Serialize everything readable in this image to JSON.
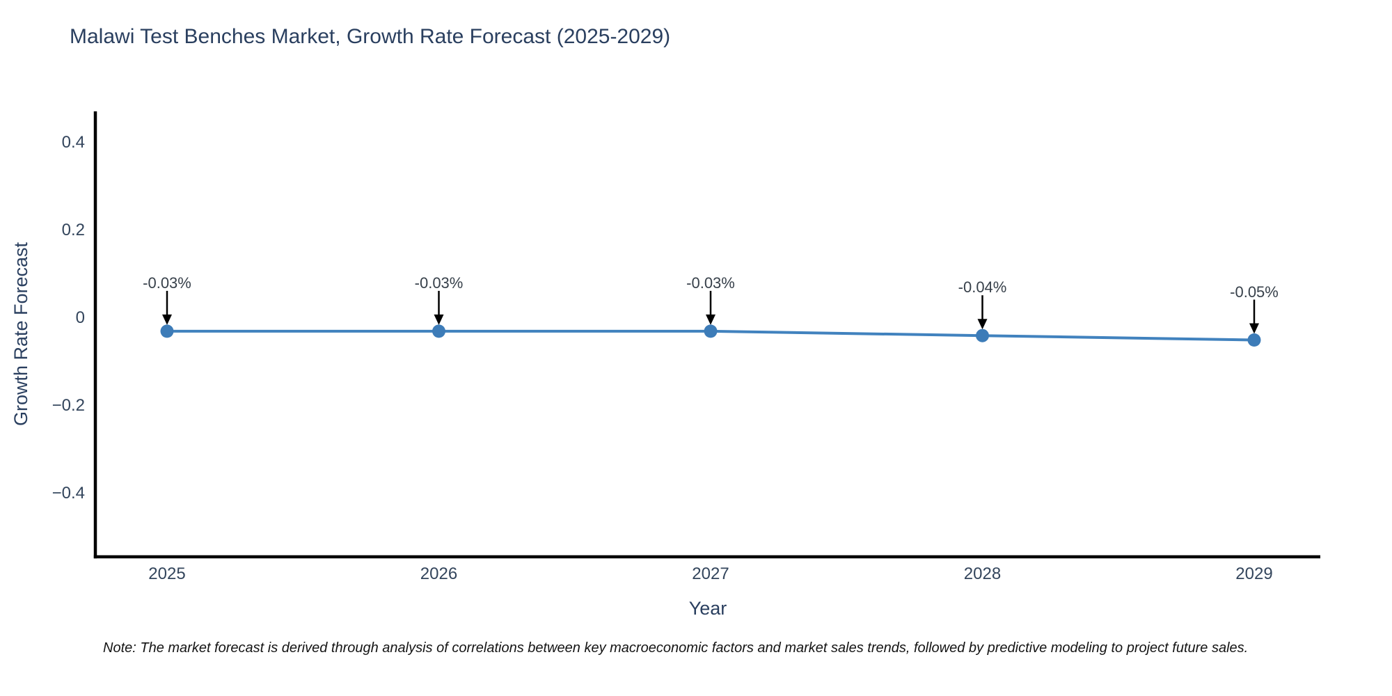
{
  "chart": {
    "title": "Malawi Test Benches Market, Growth Rate Forecast (2025-2029)",
    "xlabel": "Year",
    "ylabel": "Growth Rate Forecast",
    "note": "Note: The market forecast is derived through analysis of correlations between key macroeconomic factors and market sales trends, followed by predictive modeling to project future sales."
  },
  "chart_data": {
    "type": "line",
    "title": "Malawi Test Benches Market, Growth Rate Forecast (2025-2029)",
    "xlabel": "Year",
    "ylabel": "Growth Rate Forecast",
    "categories": [
      "2025",
      "2026",
      "2027",
      "2028",
      "2029"
    ],
    "series": [
      {
        "name": "Growth Rate Forecast",
        "values": [
          -0.03,
          -0.03,
          -0.03,
          -0.04,
          -0.05
        ]
      }
    ],
    "point_labels": [
      "-0.03%",
      "-0.03%",
      "-0.03%",
      "-0.04%",
      "-0.05%"
    ],
    "ylim": [
      -0.544,
      0.471
    ],
    "yticks": [
      0.4,
      0.2,
      0,
      -0.2,
      -0.4
    ],
    "ytick_labels": [
      "0.4",
      "0.2",
      "0",
      "−0.2",
      "−0.4"
    ],
    "grid": false,
    "legend": "none",
    "line_color": "#4182be",
    "marker_color": "#3d7cb8",
    "axis_color": "#000000",
    "annotation_arrow_color": "#000000"
  }
}
